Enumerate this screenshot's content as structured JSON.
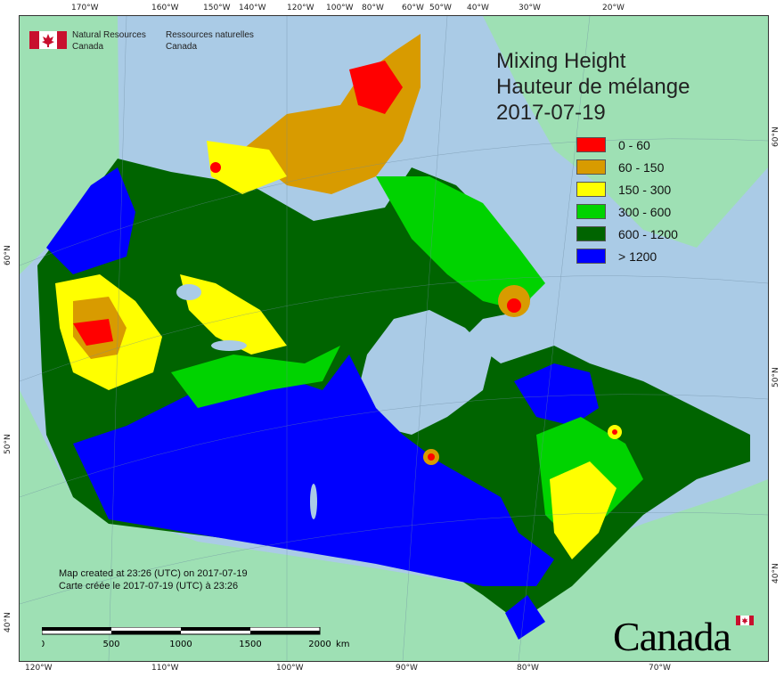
{
  "title": {
    "line1": "Mixing Height",
    "line2": "Hauteur de mélange",
    "line3": "2017-07-19"
  },
  "legend": [
    {
      "label": "0 - 60",
      "color": "#ff0000"
    },
    {
      "label": "60 - 150",
      "color": "#d89b00"
    },
    {
      "label": "150 - 300",
      "color": "#ffff00"
    },
    {
      "label": "300 - 600",
      "color": "#00d300"
    },
    {
      "label": "600 - 1200",
      "color": "#006400"
    },
    {
      "label": "> 1200",
      "color": "#0000ff"
    }
  ],
  "agency": {
    "en1": "Natural Resources",
    "en2": "Canada",
    "fr1": "Ressources naturelles",
    "fr2": "Canada"
  },
  "credit": {
    "line1": "Map created at 23:26 (UTC) on 2017-07-19",
    "line2": "Carte créée le 2017-07-19 (UTC) à 23:26"
  },
  "scale_bar": {
    "ticks": [
      "0",
      "500",
      "1000",
      "1500",
      "2000"
    ],
    "unit": "km"
  },
  "wordmark": "Canada",
  "graticule": {
    "top": [
      "170°W",
      "160°W",
      "150°W",
      "140°W",
      "120°W",
      "100°W",
      "80°W",
      "60°W",
      "50°W",
      "40°W",
      "30°W",
      "20°W"
    ],
    "bottom": [
      "120°W",
      "110°W",
      "100°W",
      "90°W",
      "80°W",
      "70°W"
    ],
    "left": [
      "60°N",
      "50°N",
      "40°N"
    ],
    "right": [
      "60°N",
      "50°N",
      "40°N"
    ]
  },
  "colors": {
    "ocean": "#aacbe6",
    "foreign_land": "#9ee0b4",
    "border": "#333333"
  }
}
